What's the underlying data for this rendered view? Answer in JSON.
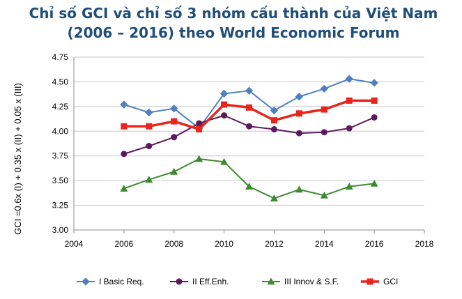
{
  "chart_data": {
    "type": "line",
    "title_line1": "Chỉ số GCI và chỉ số 3 nhóm cấu thành của Việt Nam",
    "title_line2": "(2006 – 2016) theo World Economic Forum",
    "xlabel": "",
    "ylabel": "GCI =0.6x (I) + 0.35 x (II) + 0.05 x (III)",
    "xlim": [
      2004,
      2018
    ],
    "ylim": [
      3.0,
      4.75
    ],
    "x_ticks": [
      "2004",
      "2006",
      "2008",
      "2010",
      "2012",
      "2014",
      "2016",
      "2018"
    ],
    "y_ticks": [
      "3.00",
      "3.25",
      "3.50",
      "3.75",
      "4.00",
      "4.25",
      "4.50",
      "4.75"
    ],
    "grid": "horizontal",
    "legend_position": "bottom",
    "x": [
      2006,
      2007,
      2008,
      2009,
      2010,
      2011,
      2012,
      2013,
      2014,
      2015,
      2016
    ],
    "series": [
      {
        "name": "I Basic Req.",
        "color": "#4f81bd",
        "marker": "diamond",
        "values": [
          4.27,
          4.19,
          4.23,
          4.03,
          4.38,
          4.41,
          4.21,
          4.35,
          4.43,
          4.53,
          4.49
        ]
      },
      {
        "name": "II Eff.Enh.",
        "color": "#5b1a5e",
        "marker": "circle",
        "values": [
          3.77,
          3.85,
          3.94,
          4.08,
          4.16,
          4.05,
          4.02,
          3.98,
          3.99,
          4.03,
          4.14
        ]
      },
      {
        "name": "III Innov & S.F.",
        "color": "#3e8a2e",
        "marker": "triangle",
        "values": [
          3.42,
          3.51,
          3.59,
          3.72,
          3.69,
          3.44,
          3.32,
          3.41,
          3.35,
          3.44,
          3.47
        ]
      },
      {
        "name": "GCI",
        "color": "#e8241c",
        "marker": "square",
        "values": [
          4.05,
          4.05,
          4.1,
          4.02,
          4.27,
          4.24,
          4.11,
          4.18,
          4.22,
          4.31,
          4.31
        ]
      }
    ]
  }
}
